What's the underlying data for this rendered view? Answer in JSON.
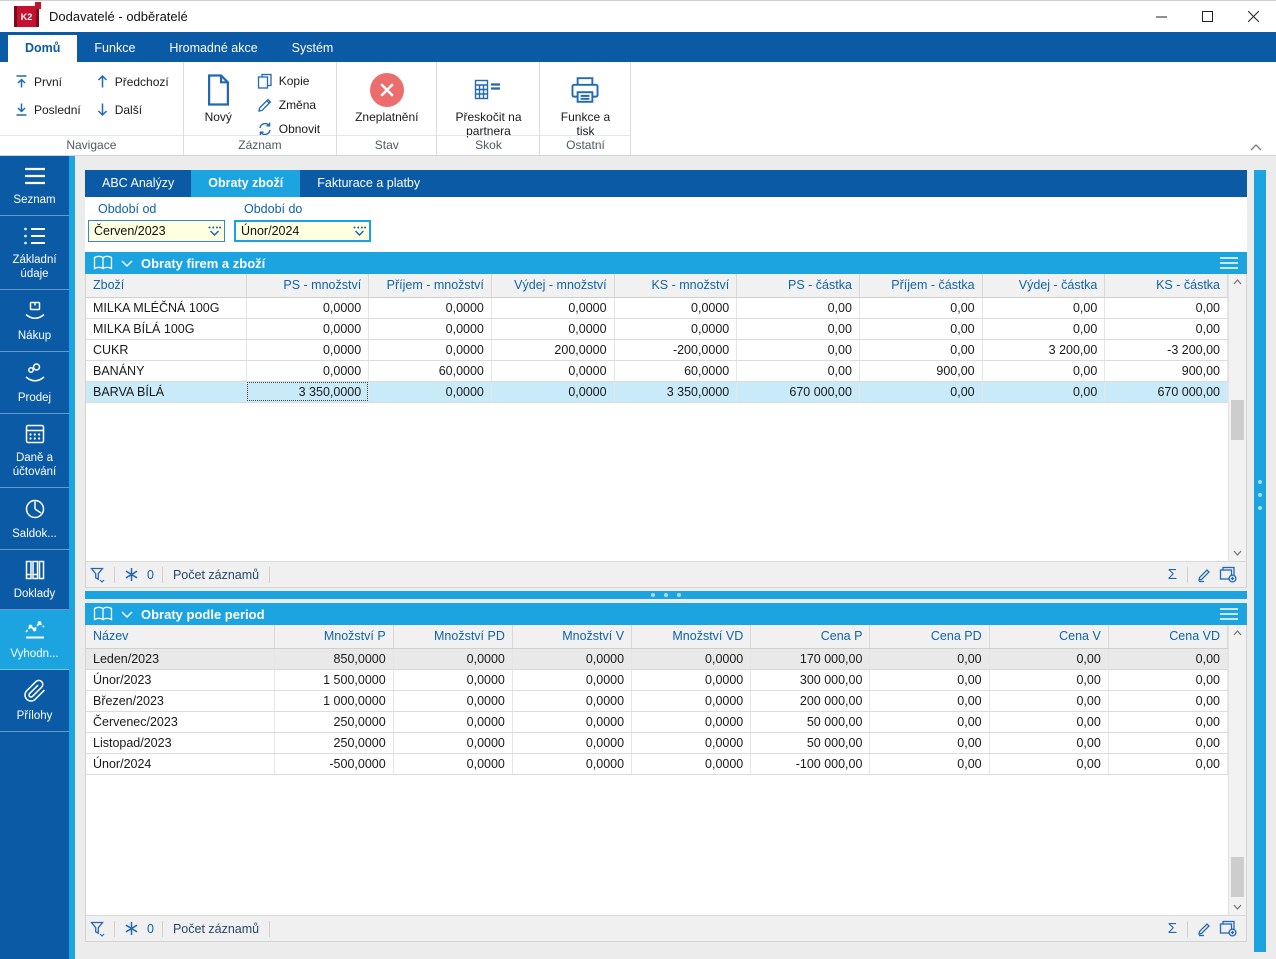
{
  "window": {
    "title": "Dodavatelé - odběratelé",
    "logo_text": "K2",
    "controls": [
      {
        "name": "minimize",
        "icon": "minimize-icon"
      },
      {
        "name": "maximize",
        "icon": "maximize-icon"
      },
      {
        "name": "close",
        "icon": "close-icon"
      }
    ]
  },
  "ribbon": {
    "tabs": [
      {
        "label": "Domů",
        "active": true
      },
      {
        "label": "Funkce",
        "active": false
      },
      {
        "label": "Hromadné akce",
        "active": false
      },
      {
        "label": "Systém",
        "active": false
      }
    ],
    "nav_group": {
      "label": "Navigace",
      "buttons": [
        {
          "label": "První",
          "icon": "arrow-up-to-bar"
        },
        {
          "label": "Poslední",
          "icon": "arrow-down-to-bar"
        },
        {
          "label": "Předchozí",
          "icon": "arrow-up"
        },
        {
          "label": "Další",
          "icon": "arrow-down"
        }
      ]
    },
    "record_group": {
      "label": "Záznam",
      "new_button": {
        "label": "Nový",
        "icon": "document-new"
      },
      "buttons": [
        {
          "label": "Kopie",
          "icon": "copy"
        },
        {
          "label": "Změna",
          "icon": "pencil"
        },
        {
          "label": "Obnovit",
          "icon": "refresh"
        }
      ]
    },
    "state_group": {
      "label": "Stav",
      "button": {
        "label": "Zneplatnění",
        "icon": "red-cross-circle"
      }
    },
    "jump_group": {
      "label": "Skok",
      "button": {
        "label": "Přeskočit na partnera",
        "icon": "table-jump"
      }
    },
    "other_group": {
      "label": "Ostatní",
      "button": {
        "label": "Funkce a tisk",
        "icon": "printer"
      }
    }
  },
  "sidebar": {
    "items": [
      {
        "label": "Seznam",
        "icon": "menu-icon",
        "active": false
      },
      {
        "label": "Základní údaje",
        "icon": "list-icon",
        "active": false
      },
      {
        "label": "Nákup",
        "icon": "purchase-icon",
        "active": false
      },
      {
        "label": "Prodej",
        "icon": "sell-icon",
        "active": false
      },
      {
        "label": "Daně a účtování",
        "icon": "calculator-icon",
        "active": false
      },
      {
        "label": "Saldok...",
        "icon": "clock-pie-icon",
        "active": false
      },
      {
        "label": "Doklady",
        "icon": "books-icon",
        "active": false
      },
      {
        "label": "Vyhodn...",
        "icon": "chart-icon",
        "active": true
      },
      {
        "label": "Přílohy",
        "icon": "paperclip-icon",
        "active": false
      }
    ]
  },
  "content": {
    "tabs": [
      {
        "label": "ABC Analýzy",
        "active": false
      },
      {
        "label": "Obraty zboží",
        "active": true
      },
      {
        "label": "Fakturace a platby",
        "active": false
      }
    ],
    "filters": {
      "from_label": "Období od",
      "from_value": "Červen/2023",
      "to_label": "Období do",
      "to_value": "Únor/2024",
      "focused_field": "to"
    },
    "panel1": {
      "title": "Obraty firem a zboží",
      "columns": [
        "Zboží",
        "PS - množství",
        "Příjem - množství",
        "Výdej - množství",
        "KS - množství",
        "PS - částka",
        "Příjem - částka",
        "Výdej - částka",
        "KS - částka"
      ],
      "rows": [
        [
          "MILKA MLÉČNÁ 100G",
          "0,0000",
          "0,0000",
          "0,0000",
          "0,0000",
          "0,00",
          "0,00",
          "0,00",
          "0,00"
        ],
        [
          "MILKA BÍLÁ 100G",
          "0,0000",
          "0,0000",
          "0,0000",
          "0,0000",
          "0,00",
          "0,00",
          "0,00",
          "0,00"
        ],
        [
          "CUKR",
          "0,0000",
          "0,0000",
          "200,0000",
          "-200,0000",
          "0,00",
          "0,00",
          "3 200,00",
          "-3 200,00"
        ],
        [
          "BANÁNY",
          "0,0000",
          "60,0000",
          "0,0000",
          "60,0000",
          "0,00",
          "900,00",
          "0,00",
          "900,00"
        ],
        [
          "BARVA BÍLÁ",
          "3 350,0000",
          "0,0000",
          "0,0000",
          "3 350,0000",
          "670 000,00",
          "0,00",
          "0,00",
          "670 000,00"
        ]
      ],
      "selected_row_index": 4,
      "selection_style": "active",
      "focused_cell_index": 1,
      "status": {
        "count": "0",
        "count_label": "Počet záznamů",
        "left_icons": [
          "funnel",
          "asterisk"
        ],
        "right_icons": [
          "sum",
          "edit",
          "add-view"
        ]
      }
    },
    "panel2": {
      "title": "Obraty podle period",
      "columns": [
        "Název",
        "Množství P",
        "Množství PD",
        "Množství V",
        "Množství VD",
        "Cena P",
        "Cena PD",
        "Cena V",
        "Cena VD"
      ],
      "rows": [
        [
          "Leden/2023",
          "850,0000",
          "0,0000",
          "0,0000",
          "0,0000",
          "170 000,00",
          "0,00",
          "0,00",
          "0,00"
        ],
        [
          "Únor/2023",
          "1 500,0000",
          "0,0000",
          "0,0000",
          "0,0000",
          "300 000,00",
          "0,00",
          "0,00",
          "0,00"
        ],
        [
          "Březen/2023",
          "1 000,0000",
          "0,0000",
          "0,0000",
          "0,0000",
          "200 000,00",
          "0,00",
          "0,00",
          "0,00"
        ],
        [
          "Červenec/2023",
          "250,0000",
          "0,0000",
          "0,0000",
          "0,0000",
          "50 000,00",
          "0,00",
          "0,00",
          "0,00"
        ],
        [
          "Listopad/2023",
          "250,0000",
          "0,0000",
          "0,0000",
          "0,0000",
          "50 000,00",
          "0,00",
          "0,00",
          "0,00"
        ],
        [
          "Únor/2024",
          "-500,0000",
          "0,0000",
          "0,0000",
          "0,0000",
          "-100 000,00",
          "0,00",
          "0,00",
          "0,00"
        ]
      ],
      "selected_row_index": 0,
      "selection_style": "inactive",
      "status": {
        "count": "0",
        "count_label": "Počet záznamů",
        "left_icons": [
          "funnel",
          "asterisk"
        ],
        "right_icons": [
          "sum",
          "edit",
          "add-view"
        ]
      }
    }
  },
  "colors": {
    "dark_blue": "#0b5aa5",
    "cyan_accent": "#1ba4e0",
    "selected_row": "#c9eaf9",
    "inactive_selected_row": "#e9e9e9",
    "column_header_text": "#1062ac",
    "input_background": "#ffffe1",
    "invalid_red": "#ec6d6e",
    "logo_red": "#c51230",
    "icon_blue": "#2268b2"
  }
}
